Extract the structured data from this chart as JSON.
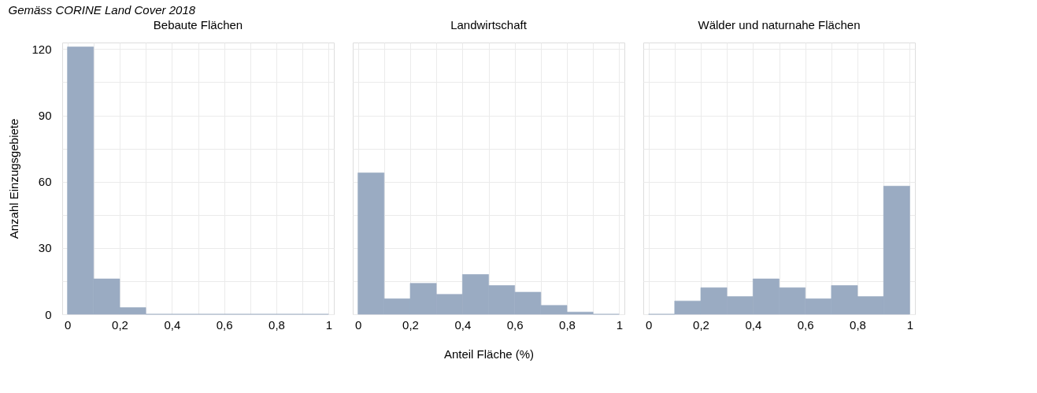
{
  "chart_data": [
    {
      "type": "histogram",
      "subtitle": "Gemäss CORINE Land Cover 2018",
      "title": "Bebaute Flächen",
      "ylabel": "Anzahl Einzugsgebiete",
      "color": "#9aabc2",
      "bins": [
        0,
        0.1,
        0.2,
        0.3,
        0.4,
        0.5,
        0.6,
        0.7,
        0.8,
        0.9,
        1
      ],
      "values": [
        121,
        16,
        3,
        0,
        0,
        0,
        0,
        0,
        0,
        0
      ],
      "xlim": [
        -0.02,
        1.02
      ],
      "ylim": [
        0,
        123
      ],
      "xticks": [
        0,
        {
          "value": 0.1,
          "label": null
        },
        {
          "value": 0.2,
          "label": "0,2"
        },
        {
          "value": 0.3,
          "label": null
        },
        {
          "value": 0.4,
          "label": "0,4"
        },
        {
          "value": 0.5,
          "label": null
        },
        {
          "value": 0.6,
          "label": "0,6"
        },
        {
          "value": 0.7,
          "label": null
        },
        {
          "value": 0.8,
          "label": "0,8"
        },
        {
          "value": 0.9,
          "label": null
        },
        1
      ],
      "yticks": [
        0,
        {
          "value": 15,
          "label": null
        },
        30,
        {
          "value": 45,
          "label": null
        },
        60,
        {
          "value": 75,
          "label": null
        },
        90,
        {
          "value": 105,
          "label": null
        },
        120
      ],
      "grid": true
    },
    {
      "type": "histogram",
      "title": "Landwirtschaft",
      "xlabel": "Anteil Fläche (%)",
      "color": "#9aabc2",
      "bins": [
        0,
        0.1,
        0.2,
        0.3,
        0.4,
        0.5,
        0.6,
        0.7,
        0.8,
        0.9,
        1
      ],
      "values": [
        64,
        7,
        14,
        9,
        18,
        13,
        10,
        4,
        1,
        0
      ],
      "xlim": [
        -0.02,
        1.02
      ],
      "ylim": [
        0,
        123
      ],
      "xticks": [
        0,
        {
          "value": 0.1,
          "label": null
        },
        {
          "value": 0.2,
          "label": "0,2"
        },
        {
          "value": 0.3,
          "label": null
        },
        {
          "value": 0.4,
          "label": "0,4"
        },
        {
          "value": 0.5,
          "label": null
        },
        {
          "value": 0.6,
          "label": "0,6"
        },
        {
          "value": 0.7,
          "label": null
        },
        {
          "value": 0.8,
          "label": "0,8"
        },
        {
          "value": 0.9,
          "label": null
        },
        1
      ],
      "yticks": [
        0,
        {
          "value": 15,
          "label": null
        },
        30,
        {
          "value": 45,
          "label": null
        },
        60,
        {
          "value": 75,
          "label": null
        },
        90,
        {
          "value": 105,
          "label": null
        },
        120
      ],
      "tick_labels": "x",
      "grid": true
    },
    {
      "type": "histogram",
      "title": "Wälder und naturnahe Flächen",
      "color": "#9aabc2",
      "bins": [
        0,
        0.1,
        0.2,
        0.3,
        0.4,
        0.5,
        0.6,
        0.7,
        0.8,
        0.9,
        1
      ],
      "values": [
        0,
        6,
        12,
        8,
        16,
        12,
        7,
        13,
        8,
        58
      ],
      "xlim": [
        -0.02,
        1.02
      ],
      "ylim": [
        0,
        123
      ],
      "xticks": [
        0,
        {
          "value": 0.1,
          "label": null
        },
        {
          "value": 0.2,
          "label": "0,2"
        },
        {
          "value": 0.3,
          "label": null
        },
        {
          "value": 0.4,
          "label": "0,4"
        },
        {
          "value": 0.5,
          "label": null
        },
        {
          "value": 0.6,
          "label": "0,6"
        },
        {
          "value": 0.7,
          "label": null
        },
        {
          "value": 0.8,
          "label": "0,8"
        },
        {
          "value": 0.9,
          "label": null
        },
        1
      ],
      "yticks": [
        0,
        {
          "value": 15,
          "label": null
        },
        30,
        {
          "value": 45,
          "label": null
        },
        60,
        {
          "value": 75,
          "label": null
        },
        90,
        {
          "value": 105,
          "label": null
        },
        120
      ],
      "tick_labels": "x",
      "grid": true
    }
  ]
}
